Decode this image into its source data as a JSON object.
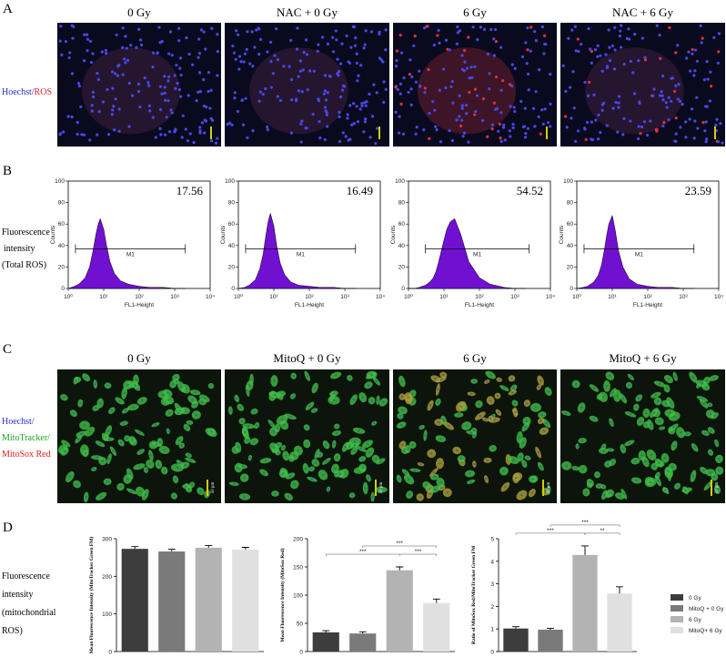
{
  "panel_a": {
    "label": "A",
    "titles": [
      "0 Gy",
      "NAC + 0 Gy",
      "6 Gy",
      "NAC + 6 Gy"
    ],
    "side_label": [
      "Hoechst/",
      "ROS"
    ]
  },
  "panel_b": {
    "label": "B",
    "side_label": [
      "Fluorescence",
      "intensity",
      "(Total ROS)"
    ]
  },
  "panel_c": {
    "label": "C",
    "titles": [
      "0 Gy",
      "MitoQ + 0 Gy",
      "6 Gy",
      "MitoQ + 6 Gy"
    ],
    "side_label": [
      "Hoechst/",
      "MitoTracker/",
      "MitoSox Red"
    ],
    "scale_bar": "50 μm"
  },
  "panel_d": {
    "label": "D",
    "side_label": [
      "Fluorescence",
      "intensity",
      "(mitochondrial",
      "ROS)"
    ]
  },
  "chart_data": [
    {
      "type": "area",
      "x": [
        1,
        1.5,
        2,
        3,
        4,
        5,
        6,
        7,
        8,
        10,
        12,
        15,
        20,
        30,
        50,
        100,
        200,
        500,
        1000,
        2000
      ],
      "values": [
        0,
        2,
        4,
        10,
        20,
        35,
        50,
        60,
        65,
        55,
        40,
        25,
        14,
        7,
        4,
        2,
        1,
        1,
        0,
        0
      ],
      "color": "#7010d0",
      "xlim": [
        1,
        10000
      ],
      "log_x": true,
      "ylim": [
        0,
        100
      ],
      "yticks": [
        0,
        20,
        40,
        60,
        80,
        100
      ],
      "xticks": [
        {
          "value": 1,
          "label": "10⁰"
        },
        {
          "value": 10,
          "label": "10¹"
        },
        {
          "value": 100,
          "label": "10²"
        },
        {
          "value": 1000,
          "label": "10³"
        },
        {
          "value": 10000,
          "label": "10⁴"
        }
      ],
      "xlabel": "FL1-Height",
      "ylabel": "Counts",
      "annotation": 17.56,
      "gate": {
        "label": "M1",
        "x": [
          1.6,
          2000
        ],
        "y": 37
      }
    },
    {
      "type": "area",
      "x": [
        1,
        1.5,
        2,
        3,
        4,
        5,
        6,
        7,
        8,
        10,
        12,
        15,
        20,
        30,
        50,
        100,
        200,
        500,
        1000,
        2000
      ],
      "values": [
        0,
        1,
        3,
        8,
        18,
        32,
        50,
        63,
        70,
        58,
        40,
        24,
        13,
        6,
        3,
        2,
        1,
        1,
        0,
        0
      ],
      "color": "#7010d0",
      "xlim": [
        1,
        10000
      ],
      "log_x": true,
      "ylim": [
        0,
        100
      ],
      "yticks": [
        0,
        20,
        40,
        60,
        80,
        100
      ],
      "xticks": [
        {
          "value": 1,
          "label": "10⁰"
        },
        {
          "value": 10,
          "label": "10¹"
        },
        {
          "value": 100,
          "label": "10²"
        },
        {
          "value": 1000,
          "label": "10³"
        },
        {
          "value": 10000,
          "label": "10⁴"
        }
      ],
      "xlabel": "FL1-Height",
      "ylabel": "Counts",
      "annotation": 16.49,
      "gate": {
        "label": "M1",
        "x": [
          1.6,
          2000
        ],
        "y": 37
      }
    },
    {
      "type": "area",
      "x": [
        1,
        1.5,
        2,
        3,
        4,
        5,
        6,
        7,
        8,
        10,
        12,
        15,
        20,
        30,
        50,
        100,
        200,
        500,
        1000,
        2000
      ],
      "values": [
        0,
        0,
        1,
        3,
        6,
        10,
        16,
        24,
        32,
        45,
        55,
        62,
        65,
        50,
        25,
        10,
        4,
        1,
        0,
        0
      ],
      "color": "#7010d0",
      "xlim": [
        1,
        10000
      ],
      "log_x": true,
      "ylim": [
        0,
        100
      ],
      "yticks": [
        0,
        20,
        40,
        60,
        80,
        100
      ],
      "xticks": [
        {
          "value": 1,
          "label": "10⁰"
        },
        {
          "value": 10,
          "label": "10¹"
        },
        {
          "value": 100,
          "label": "10²"
        },
        {
          "value": 1000,
          "label": "10³"
        },
        {
          "value": 10000,
          "label": "10⁴"
        }
      ],
      "xlabel": "FL1-Height",
      "ylabel": "Counts",
      "annotation": 54.52,
      "gate": {
        "label": "M1",
        "x": [
          3,
          2500
        ],
        "y": 37
      }
    },
    {
      "type": "area",
      "x": [
        1,
        1.5,
        2,
        3,
        4,
        5,
        6,
        7,
        8,
        10,
        12,
        15,
        20,
        30,
        50,
        100,
        200,
        500,
        1000,
        2000
      ],
      "values": [
        0,
        1,
        2,
        6,
        12,
        22,
        36,
        50,
        60,
        68,
        55,
        35,
        20,
        9,
        4,
        2,
        1,
        1,
        0,
        0
      ],
      "color": "#7010d0",
      "xlim": [
        1,
        10000
      ],
      "log_x": true,
      "ylim": [
        0,
        100
      ],
      "yticks": [
        0,
        20,
        40,
        60,
        80,
        100
      ],
      "xticks": [
        {
          "value": 1,
          "label": "10⁰"
        },
        {
          "value": 10,
          "label": "10¹"
        },
        {
          "value": 100,
          "label": "10²"
        },
        {
          "value": 1000,
          "label": "10³"
        },
        {
          "value": 10000,
          "label": "10⁴"
        }
      ],
      "xlabel": "FL1-Height",
      "ylabel": "Counts",
      "annotation": 23.59,
      "gate": {
        "label": "M1",
        "x": [
          1.6,
          2000
        ],
        "y": 37
      }
    },
    {
      "type": "bar",
      "ylabel": "Mean Fluorescence Intensity  (MitoTracker Green FM)",
      "values": [
        273,
        266,
        276,
        271
      ],
      "errors": [
        6,
        6,
        6,
        6
      ],
      "colors": [
        "#3d3d3d",
        "#7a7a7a",
        "#b3b3b3",
        "#e0e0e0"
      ],
      "ylim": [
        0,
        300
      ],
      "yticks": [
        0,
        100,
        200,
        300
      ]
    },
    {
      "type": "bar",
      "ylabel": "Mean Fluorescence Intensity  (MitoSox Red)",
      "values": [
        34,
        32,
        144,
        86
      ],
      "errors": [
        3,
        3,
        6,
        7
      ],
      "colors": [
        "#3d3d3d",
        "#7a7a7a",
        "#b3b3b3",
        "#e0e0e0"
      ],
      "ylim": [
        0,
        200
      ],
      "yticks": [
        0,
        50,
        100,
        150,
        200
      ],
      "brackets": [
        {
          "label": "***",
          "bars": [
            0,
            2
          ]
        },
        {
          "label": "***",
          "bars": [
            2,
            3
          ]
        },
        {
          "label": "***",
          "bars": [
            1,
            3
          ]
        }
      ]
    },
    {
      "type": "bar",
      "ylabel": "Ratio of MitoSox Red/MitoTracker Green FM",
      "categories": [
        "0 Gy",
        "MitoQ + 0 Gy",
        "6 Gy",
        "MitoQ+ 6 Gy"
      ],
      "values": [
        1.02,
        0.97,
        4.28,
        2.57
      ],
      "errors": [
        0.08,
        0.06,
        0.4,
        0.3
      ],
      "colors": [
        "#3d3d3d",
        "#7a7a7a",
        "#b3b3b3",
        "#e0e0e0"
      ],
      "ylim": [
        0,
        5
      ],
      "yticks": [
        0,
        1,
        2,
        3,
        4,
        5
      ],
      "legend": "right",
      "brackets": [
        {
          "label": "***",
          "bars": [
            0,
            2
          ]
        },
        {
          "label": "**",
          "bars": [
            2,
            3
          ]
        },
        {
          "label": "***",
          "bars": [
            1,
            3
          ]
        }
      ]
    }
  ]
}
